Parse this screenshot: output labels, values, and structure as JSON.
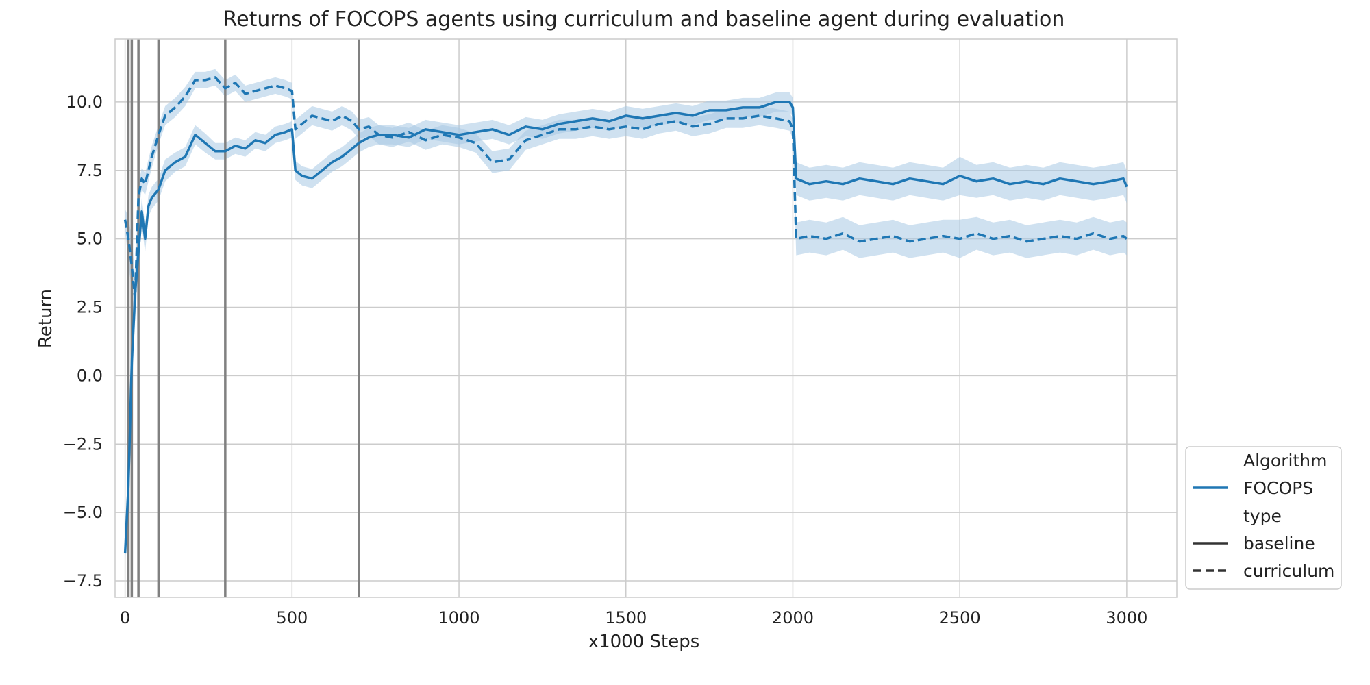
{
  "chart_data": {
    "type": "line",
    "title": "Returns of FOCOPS agents using curriculum and baseline agent during evaluation",
    "xlabel": "x1000 Steps",
    "ylabel": "Return",
    "xlim": [
      -30,
      3150
    ],
    "ylim": [
      -8.1,
      12.3
    ],
    "xticks": [
      0,
      500,
      1000,
      1500,
      2000,
      2500,
      3000
    ],
    "yticks": [
      -7.5,
      -5.0,
      -2.5,
      0.0,
      2.5,
      5.0,
      7.5,
      10.0
    ],
    "grid": true,
    "legend_position": "bottom-right-outside",
    "colors": {
      "series": "#1f77b4",
      "band": "#a8c8e4",
      "vlines": "#808080",
      "grid": "#cccccc",
      "spine": "#cccccc"
    },
    "vertical_lines_x": [
      10,
      20,
      40,
      100,
      300,
      700
    ],
    "legend": {
      "hue_title": "Algorithm",
      "hue_entry": "FOCOPS",
      "style_title": "type",
      "style_entries": [
        "baseline",
        "curriculum"
      ]
    },
    "series": [
      {
        "name": "baseline",
        "linestyle": "solid",
        "x": [
          0,
          10,
          20,
          30,
          40,
          50,
          60,
          70,
          80,
          100,
          120,
          150,
          180,
          210,
          240,
          270,
          300,
          330,
          360,
          390,
          420,
          450,
          480,
          500,
          510,
          530,
          560,
          590,
          620,
          650,
          680,
          700,
          730,
          760,
          800,
          850,
          900,
          950,
          1000,
          1050,
          1100,
          1150,
          1200,
          1250,
          1300,
          1350,
          1400,
          1450,
          1500,
          1550,
          1600,
          1650,
          1700,
          1750,
          1800,
          1850,
          1900,
          1950,
          1990,
          2000,
          2010,
          2050,
          2100,
          2150,
          2200,
          2250,
          2300,
          2350,
          2400,
          2450,
          2500,
          2550,
          2600,
          2650,
          2700,
          2750,
          2800,
          2850,
          2900,
          2950,
          2990,
          3000
        ],
        "values": [
          -6.5,
          -4.0,
          0.5,
          3.0,
          4.5,
          6.0,
          5.0,
          6.2,
          6.5,
          6.8,
          7.5,
          7.8,
          8.0,
          8.8,
          8.5,
          8.2,
          8.2,
          8.4,
          8.3,
          8.6,
          8.5,
          8.8,
          8.9,
          9.0,
          7.5,
          7.3,
          7.2,
          7.5,
          7.8,
          8.0,
          8.3,
          8.5,
          8.7,
          8.8,
          8.8,
          8.7,
          9.0,
          8.9,
          8.8,
          8.9,
          9.0,
          8.8,
          9.1,
          9.0,
          9.2,
          9.3,
          9.4,
          9.3,
          9.5,
          9.4,
          9.5,
          9.6,
          9.5,
          9.7,
          9.7,
          9.8,
          9.8,
          10.0,
          10.0,
          9.8,
          7.2,
          7.0,
          7.1,
          7.0,
          7.2,
          7.1,
          7.0,
          7.2,
          7.1,
          7.0,
          7.3,
          7.1,
          7.2,
          7.0,
          7.1,
          7.0,
          7.2,
          7.1,
          7.0,
          7.1,
          7.2,
          6.9
        ],
        "ci": [
          0.4,
          0.8,
          1.2,
          1.0,
          0.6,
          0.5,
          0.5,
          0.4,
          0.4,
          0.4,
          0.4,
          0.35,
          0.35,
          0.35,
          0.35,
          0.3,
          0.3,
          0.3,
          0.3,
          0.3,
          0.3,
          0.3,
          0.3,
          0.3,
          0.35,
          0.35,
          0.35,
          0.35,
          0.35,
          0.35,
          0.35,
          0.35,
          0.35,
          0.35,
          0.35,
          0.35,
          0.35,
          0.35,
          0.35,
          0.35,
          0.35,
          0.35,
          0.35,
          0.35,
          0.35,
          0.35,
          0.35,
          0.35,
          0.35,
          0.35,
          0.35,
          0.35,
          0.35,
          0.35,
          0.35,
          0.35,
          0.35,
          0.35,
          0.35,
          0.35,
          0.6,
          0.6,
          0.6,
          0.6,
          0.6,
          0.6,
          0.6,
          0.6,
          0.6,
          0.6,
          0.7,
          0.6,
          0.6,
          0.6,
          0.6,
          0.6,
          0.6,
          0.6,
          0.6,
          0.6,
          0.6,
          0.6
        ]
      },
      {
        "name": "curriculum",
        "linestyle": "dashed",
        "x": [
          0,
          10,
          20,
          30,
          40,
          50,
          60,
          70,
          80,
          100,
          120,
          150,
          180,
          210,
          240,
          270,
          300,
          330,
          360,
          390,
          420,
          450,
          480,
          500,
          510,
          530,
          560,
          590,
          620,
          650,
          680,
          700,
          730,
          760,
          800,
          850,
          900,
          950,
          1000,
          1050,
          1100,
          1150,
          1200,
          1250,
          1300,
          1350,
          1400,
          1450,
          1500,
          1550,
          1600,
          1650,
          1700,
          1750,
          1800,
          1850,
          1900,
          1950,
          1990,
          2000,
          2010,
          2050,
          2100,
          2150,
          2200,
          2250,
          2300,
          2350,
          2400,
          2450,
          2500,
          2550,
          2600,
          2650,
          2700,
          2750,
          2800,
          2850,
          2900,
          2950,
          2990,
          3000
        ],
        "values": [
          5.7,
          5.0,
          4.0,
          2.8,
          6.5,
          7.2,
          7.0,
          7.5,
          8.0,
          8.8,
          9.5,
          9.8,
          10.2,
          10.8,
          10.8,
          10.9,
          10.5,
          10.7,
          10.3,
          10.4,
          10.5,
          10.6,
          10.5,
          10.4,
          9.0,
          9.2,
          9.5,
          9.4,
          9.3,
          9.5,
          9.3,
          9.0,
          9.1,
          8.8,
          8.7,
          8.9,
          8.6,
          8.8,
          8.7,
          8.5,
          7.8,
          7.9,
          8.6,
          8.8,
          9.0,
          9.0,
          9.1,
          9.0,
          9.1,
          9.0,
          9.2,
          9.3,
          9.1,
          9.2,
          9.4,
          9.4,
          9.5,
          9.4,
          9.3,
          9.0,
          5.0,
          5.1,
          5.0,
          5.2,
          4.9,
          5.0,
          5.1,
          4.9,
          5.0,
          5.1,
          5.0,
          5.2,
          5.0,
          5.1,
          4.9,
          5.0,
          5.1,
          5.0,
          5.2,
          5.0,
          5.1,
          5.0
        ],
        "ci": [
          0.4,
          0.8,
          1.0,
          0.8,
          0.5,
          0.4,
          0.4,
          0.4,
          0.4,
          0.35,
          0.35,
          0.35,
          0.35,
          0.3,
          0.3,
          0.3,
          0.3,
          0.3,
          0.3,
          0.3,
          0.3,
          0.3,
          0.3,
          0.3,
          0.35,
          0.35,
          0.35,
          0.35,
          0.35,
          0.35,
          0.35,
          0.35,
          0.35,
          0.35,
          0.35,
          0.35,
          0.35,
          0.35,
          0.35,
          0.35,
          0.4,
          0.4,
          0.35,
          0.35,
          0.35,
          0.35,
          0.35,
          0.35,
          0.35,
          0.35,
          0.35,
          0.35,
          0.35,
          0.35,
          0.35,
          0.35,
          0.35,
          0.35,
          0.35,
          0.35,
          0.6,
          0.6,
          0.6,
          0.6,
          0.6,
          0.6,
          0.6,
          0.6,
          0.6,
          0.6,
          0.7,
          0.6,
          0.6,
          0.6,
          0.6,
          0.6,
          0.6,
          0.6,
          0.6,
          0.6,
          0.6,
          0.6
        ]
      }
    ]
  }
}
